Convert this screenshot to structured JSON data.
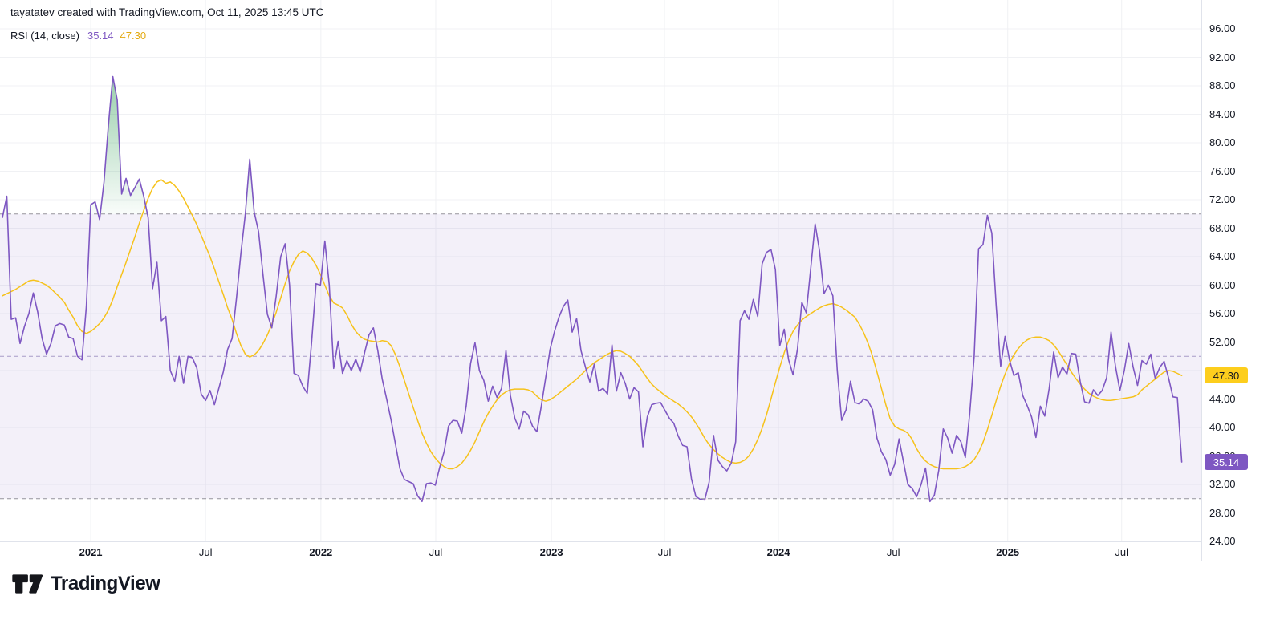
{
  "header": {
    "attribution": "tayatatev created with TradingView.com, Oct 11, 2025 13:45 UTC"
  },
  "legend": {
    "indicator_label": "RSI (14, close)",
    "rsi_value": "35.14",
    "ma_value": "47.30"
  },
  "logo": {
    "text": "TradingView",
    "icon": "tradingview-mark"
  },
  "colors": {
    "rsi_line": "#7E57C2",
    "ma_line": "#F6C21B",
    "band_fill": "rgba(126,87,194,0.09)",
    "limit_dash": "#95949C",
    "middle_dash": "#A79BC7",
    "overbought_fill": "#36A05A",
    "oversold_fill": "#EF5350",
    "grid": "#F0F1F4",
    "axis_text": "#131722",
    "border": "#E0E3EB",
    "badge_ma_bg": "#FDCE1D",
    "badge_ma_text": "#131722",
    "badge_rsi_bg": "#7E57C2",
    "badge_rsi_text": "#FFFFFF"
  },
  "price_scale": {
    "labels": [
      "96.00",
      "92.00",
      "88.00",
      "84.00",
      "80.00",
      "76.00",
      "72.00",
      "68.00",
      "64.00",
      "60.00",
      "56.00",
      "52.00",
      "48.00",
      "44.00",
      "40.00",
      "36.00",
      "32.00",
      "28.00",
      "24.00"
    ],
    "badges": [
      {
        "name": "rsi-ma-price-badge",
        "text": "47.30",
        "value": 47.3,
        "bg": "#FDCE1D",
        "fg": "#131722"
      },
      {
        "name": "rsi-price-badge",
        "text": "35.14",
        "value": 35.14,
        "bg": "#7E57C2",
        "fg": "#FFFFFF"
      }
    ]
  },
  "time_scale": {
    "ticks": [
      {
        "label": "2021",
        "week": 20.0,
        "bold": true
      },
      {
        "label": "Jul",
        "week": 46.0,
        "bold": false
      },
      {
        "label": "2022",
        "week": 72.1,
        "bold": true
      },
      {
        "label": "Jul",
        "week": 98.1,
        "bold": false
      },
      {
        "label": "2023",
        "week": 124.3,
        "bold": true
      },
      {
        "label": "Jul",
        "week": 149.9,
        "bold": false
      },
      {
        "label": "2024",
        "week": 175.7,
        "bold": true
      },
      {
        "label": "Jul",
        "week": 201.7,
        "bold": false
      },
      {
        "label": "2025",
        "week": 227.6,
        "bold": true
      },
      {
        "label": "Jul",
        "week": 253.4,
        "bold": false
      }
    ]
  },
  "chart_data": {
    "type": "line",
    "title": "RSI (14, close)",
    "xlabel": "",
    "ylabel": "",
    "x_axis": {
      "frequency": "weekly",
      "start": "Aug 2020",
      "end": "Oct 2025"
    },
    "ylim": [
      24,
      96
    ],
    "grid": true,
    "levels": {
      "overbought": 70,
      "middle": 50,
      "oversold": 30
    },
    "last_values": {
      "rsi": 35.14,
      "rsi_ma": 47.3
    },
    "series": [
      {
        "name": "RSI",
        "color": "#7E57C2",
        "values": [
          69.5,
          72.5,
          55.2,
          55.4,
          51.8,
          54.2,
          56.0,
          58.9,
          56.2,
          52.5,
          50.3,
          51.8,
          54.3,
          54.6,
          54.4,
          52.7,
          52.5,
          50.0,
          49.5,
          57.0,
          71.3,
          71.7,
          69.2,
          74.5,
          82.5,
          89.3,
          86.0,
          72.8,
          75.0,
          72.6,
          73.7,
          74.9,
          72.5,
          69.5,
          59.5,
          63.2,
          55.0,
          55.6,
          48.0,
          46.5,
          50.0,
          46.2,
          50.0,
          49.8,
          48.4,
          44.7,
          43.8,
          45.2,
          43.2,
          45.5,
          47.8,
          51.0,
          52.5,
          58.2,
          64.5,
          70.0,
          77.7,
          70.3,
          67.5,
          61.5,
          55.9,
          54.0,
          58.5,
          64.0,
          65.8,
          60.0,
          47.6,
          47.3,
          45.8,
          44.8,
          52.0,
          60.2,
          60.0,
          66.2,
          60.0,
          48.3,
          52.1,
          47.6,
          49.4,
          48.0,
          49.6,
          47.8,
          50.5,
          53.0,
          54.0,
          50.8,
          46.8,
          44.0,
          41.0,
          37.6,
          34.2,
          32.7,
          32.4,
          32.1,
          30.4,
          29.6,
          32.1,
          32.2,
          31.9,
          34.4,
          36.6,
          40.2,
          41.0,
          40.9,
          39.2,
          43.0,
          49.0,
          51.9,
          48.0,
          46.6,
          43.7,
          45.8,
          44.2,
          45.5,
          50.8,
          44.5,
          41.3,
          39.8,
          42.3,
          41.8,
          40.2,
          39.4,
          43.0,
          47.0,
          51.0,
          53.5,
          55.5,
          57.0,
          57.9,
          53.4,
          55.3,
          50.8,
          48.5,
          46.4,
          48.9,
          45.1,
          45.5,
          44.7,
          51.6,
          45.1,
          47.7,
          46.2,
          44.0,
          45.6,
          45.0,
          37.3,
          41.5,
          43.2,
          43.4,
          43.5,
          42.4,
          41.3,
          40.6,
          38.8,
          37.5,
          37.3,
          32.8,
          30.3,
          29.9,
          29.8,
          32.3,
          38.9,
          35.4,
          34.5,
          33.9,
          35.0,
          38.0,
          55.0,
          56.4,
          55.2,
          58.0,
          55.6,
          63.0,
          64.6,
          65.0,
          62.2,
          51.5,
          53.8,
          49.5,
          47.4,
          51.0,
          57.6,
          56.1,
          62.3,
          68.6,
          64.8,
          58.8,
          60.0,
          58.5,
          48.0,
          41.0,
          42.5,
          46.5,
          43.5,
          43.3,
          44.0,
          43.7,
          42.5,
          38.5,
          36.6,
          35.5,
          33.3,
          34.8,
          38.4,
          35.2,
          32.0,
          31.4,
          30.3,
          32.0,
          34.3,
          29.6,
          30.5,
          34.0,
          39.8,
          38.5,
          36.4,
          38.9,
          38.0,
          35.8,
          42.0,
          50.0,
          65.1,
          65.7,
          69.8,
          67.3,
          57.0,
          48.6,
          52.8,
          49.5,
          47.3,
          47.7,
          44.5,
          43.1,
          41.5,
          38.6,
          43.0,
          41.6,
          45.5,
          50.6,
          47.0,
          48.5,
          47.5,
          50.4,
          50.3,
          46.5,
          43.6,
          43.4,
          45.3,
          44.5,
          45.2,
          47.0,
          53.4,
          48.6,
          45.2,
          48.0,
          51.8,
          48.5,
          45.9,
          49.4,
          48.9,
          50.3,
          46.9,
          48.4,
          49.3,
          47.0,
          44.3,
          44.2,
          35.14
        ]
      },
      {
        "name": "RSI-based MA",
        "color": "#F6C21B",
        "values": [
          58.5,
          58.8,
          59.1,
          59.4,
          59.8,
          60.2,
          60.6,
          60.7,
          60.6,
          60.3,
          60.0,
          59.5,
          58.9,
          58.3,
          57.6,
          56.5,
          55.5,
          54.3,
          53.5,
          53.2,
          53.5,
          54.0,
          54.6,
          55.4,
          56.5,
          58.0,
          59.8,
          61.5,
          63.2,
          65.0,
          66.8,
          68.7,
          70.5,
          72.2,
          73.6,
          74.5,
          74.8,
          74.3,
          74.5,
          74.0,
          73.2,
          72.2,
          71.0,
          69.8,
          68.5,
          67.0,
          65.5,
          64.0,
          62.3,
          60.5,
          58.7,
          56.8,
          55.2,
          53.2,
          51.5,
          50.3,
          49.9,
          50.2,
          50.8,
          51.8,
          53.0,
          54.5,
          56.2,
          58.2,
          60.2,
          62.0,
          63.3,
          64.3,
          64.8,
          64.5,
          63.8,
          62.8,
          61.5,
          60.0,
          58.5,
          57.5,
          57.2,
          56.8,
          55.8,
          54.5,
          53.5,
          52.8,
          52.4,
          52.2,
          52.1,
          52.0,
          52.2,
          52.1,
          51.5,
          50.2,
          48.5,
          46.6,
          44.7,
          42.8,
          41.0,
          39.2,
          37.8,
          36.6,
          35.7,
          35.0,
          34.5,
          34.2,
          34.2,
          34.5,
          35.0,
          35.8,
          36.8,
          38.0,
          39.4,
          40.8,
          42.0,
          43.0,
          43.9,
          44.6,
          45.0,
          45.3,
          45.4,
          45.4,
          45.4,
          45.3,
          45.0,
          44.4,
          43.9,
          43.7,
          43.9,
          44.3,
          44.8,
          45.3,
          45.8,
          46.3,
          46.8,
          47.4,
          48.0,
          48.6,
          49.1,
          49.5,
          49.9,
          50.3,
          50.6,
          50.8,
          50.7,
          50.4,
          50.0,
          49.4,
          48.7,
          47.8,
          46.9,
          46.1,
          45.5,
          45.0,
          44.5,
          44.1,
          43.7,
          43.3,
          42.8,
          42.2,
          41.5,
          40.6,
          39.6,
          38.5,
          37.6,
          36.9,
          36.3,
          35.8,
          35.4,
          35.1,
          35.0,
          35.1,
          35.4,
          36.0,
          37.0,
          38.3,
          39.9,
          41.8,
          44.0,
          46.3,
          48.5,
          50.5,
          52.2,
          53.5,
          54.4,
          55.1,
          55.6,
          56.0,
          56.4,
          56.8,
          57.1,
          57.3,
          57.4,
          57.2,
          56.9,
          56.5,
          56.0,
          55.5,
          54.5,
          53.3,
          51.8,
          50.0,
          47.8,
          45.5,
          43.2,
          41.2,
          40.2,
          39.8,
          39.6,
          39.2,
          38.3,
          37.0,
          36.0,
          35.3,
          34.8,
          34.5,
          34.3,
          34.2,
          34.2,
          34.2,
          34.2,
          34.3,
          34.5,
          34.9,
          35.5,
          36.5,
          37.9,
          39.7,
          41.7,
          43.8,
          45.8,
          47.5,
          49.0,
          50.2,
          51.1,
          51.8,
          52.3,
          52.6,
          52.7,
          52.7,
          52.5,
          52.2,
          51.6,
          50.8,
          49.8,
          48.8,
          47.8,
          46.9,
          46.1,
          45.4,
          44.8,
          44.4,
          44.1,
          43.9,
          43.8,
          43.8,
          43.9,
          44.0,
          44.1,
          44.2,
          44.3,
          44.6,
          45.3,
          45.8,
          46.3,
          46.8,
          47.3,
          47.8,
          48.0,
          47.9,
          47.6,
          47.3
        ]
      }
    ]
  }
}
